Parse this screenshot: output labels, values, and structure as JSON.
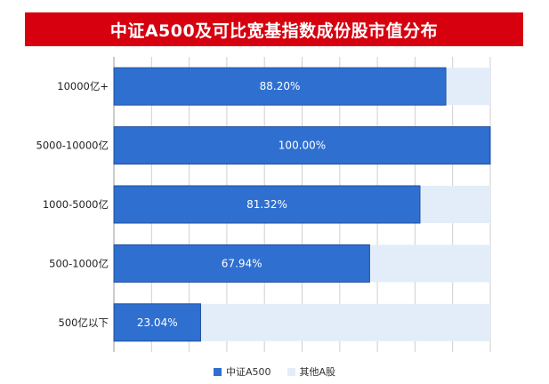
{
  "title": "中证A500及可比宽基指数成份股市值分布",
  "colors": {
    "title_bg": "#d6000f",
    "series_primary": "#2f6fd0",
    "series_primary_border": "#1f4f9c",
    "series_other": "#e3edf9",
    "grid": "#cfcfcf"
  },
  "chart_data": {
    "type": "bar",
    "orientation": "horizontal",
    "stacked": true,
    "categories": [
      "10000亿+",
      "5000-10000亿",
      "1000-5000亿",
      "500-1000亿",
      "500亿以下"
    ],
    "series": [
      {
        "name": "中证A500",
        "values": [
          88.2,
          100.0,
          81.32,
          67.94,
          23.04
        ],
        "labels": [
          "88.20%",
          "100.00%",
          "81.32%",
          "67.94%",
          "23.04%"
        ]
      },
      {
        "name": "其他A股",
        "values": [
          11.8,
          0.0,
          18.68,
          32.06,
          76.96
        ]
      }
    ],
    "xlim": [
      0,
      100
    ],
    "grid": true,
    "legend_position": "bottom"
  },
  "legend": {
    "items": [
      {
        "label": "中证A500"
      },
      {
        "label": "其他A股"
      }
    ]
  }
}
